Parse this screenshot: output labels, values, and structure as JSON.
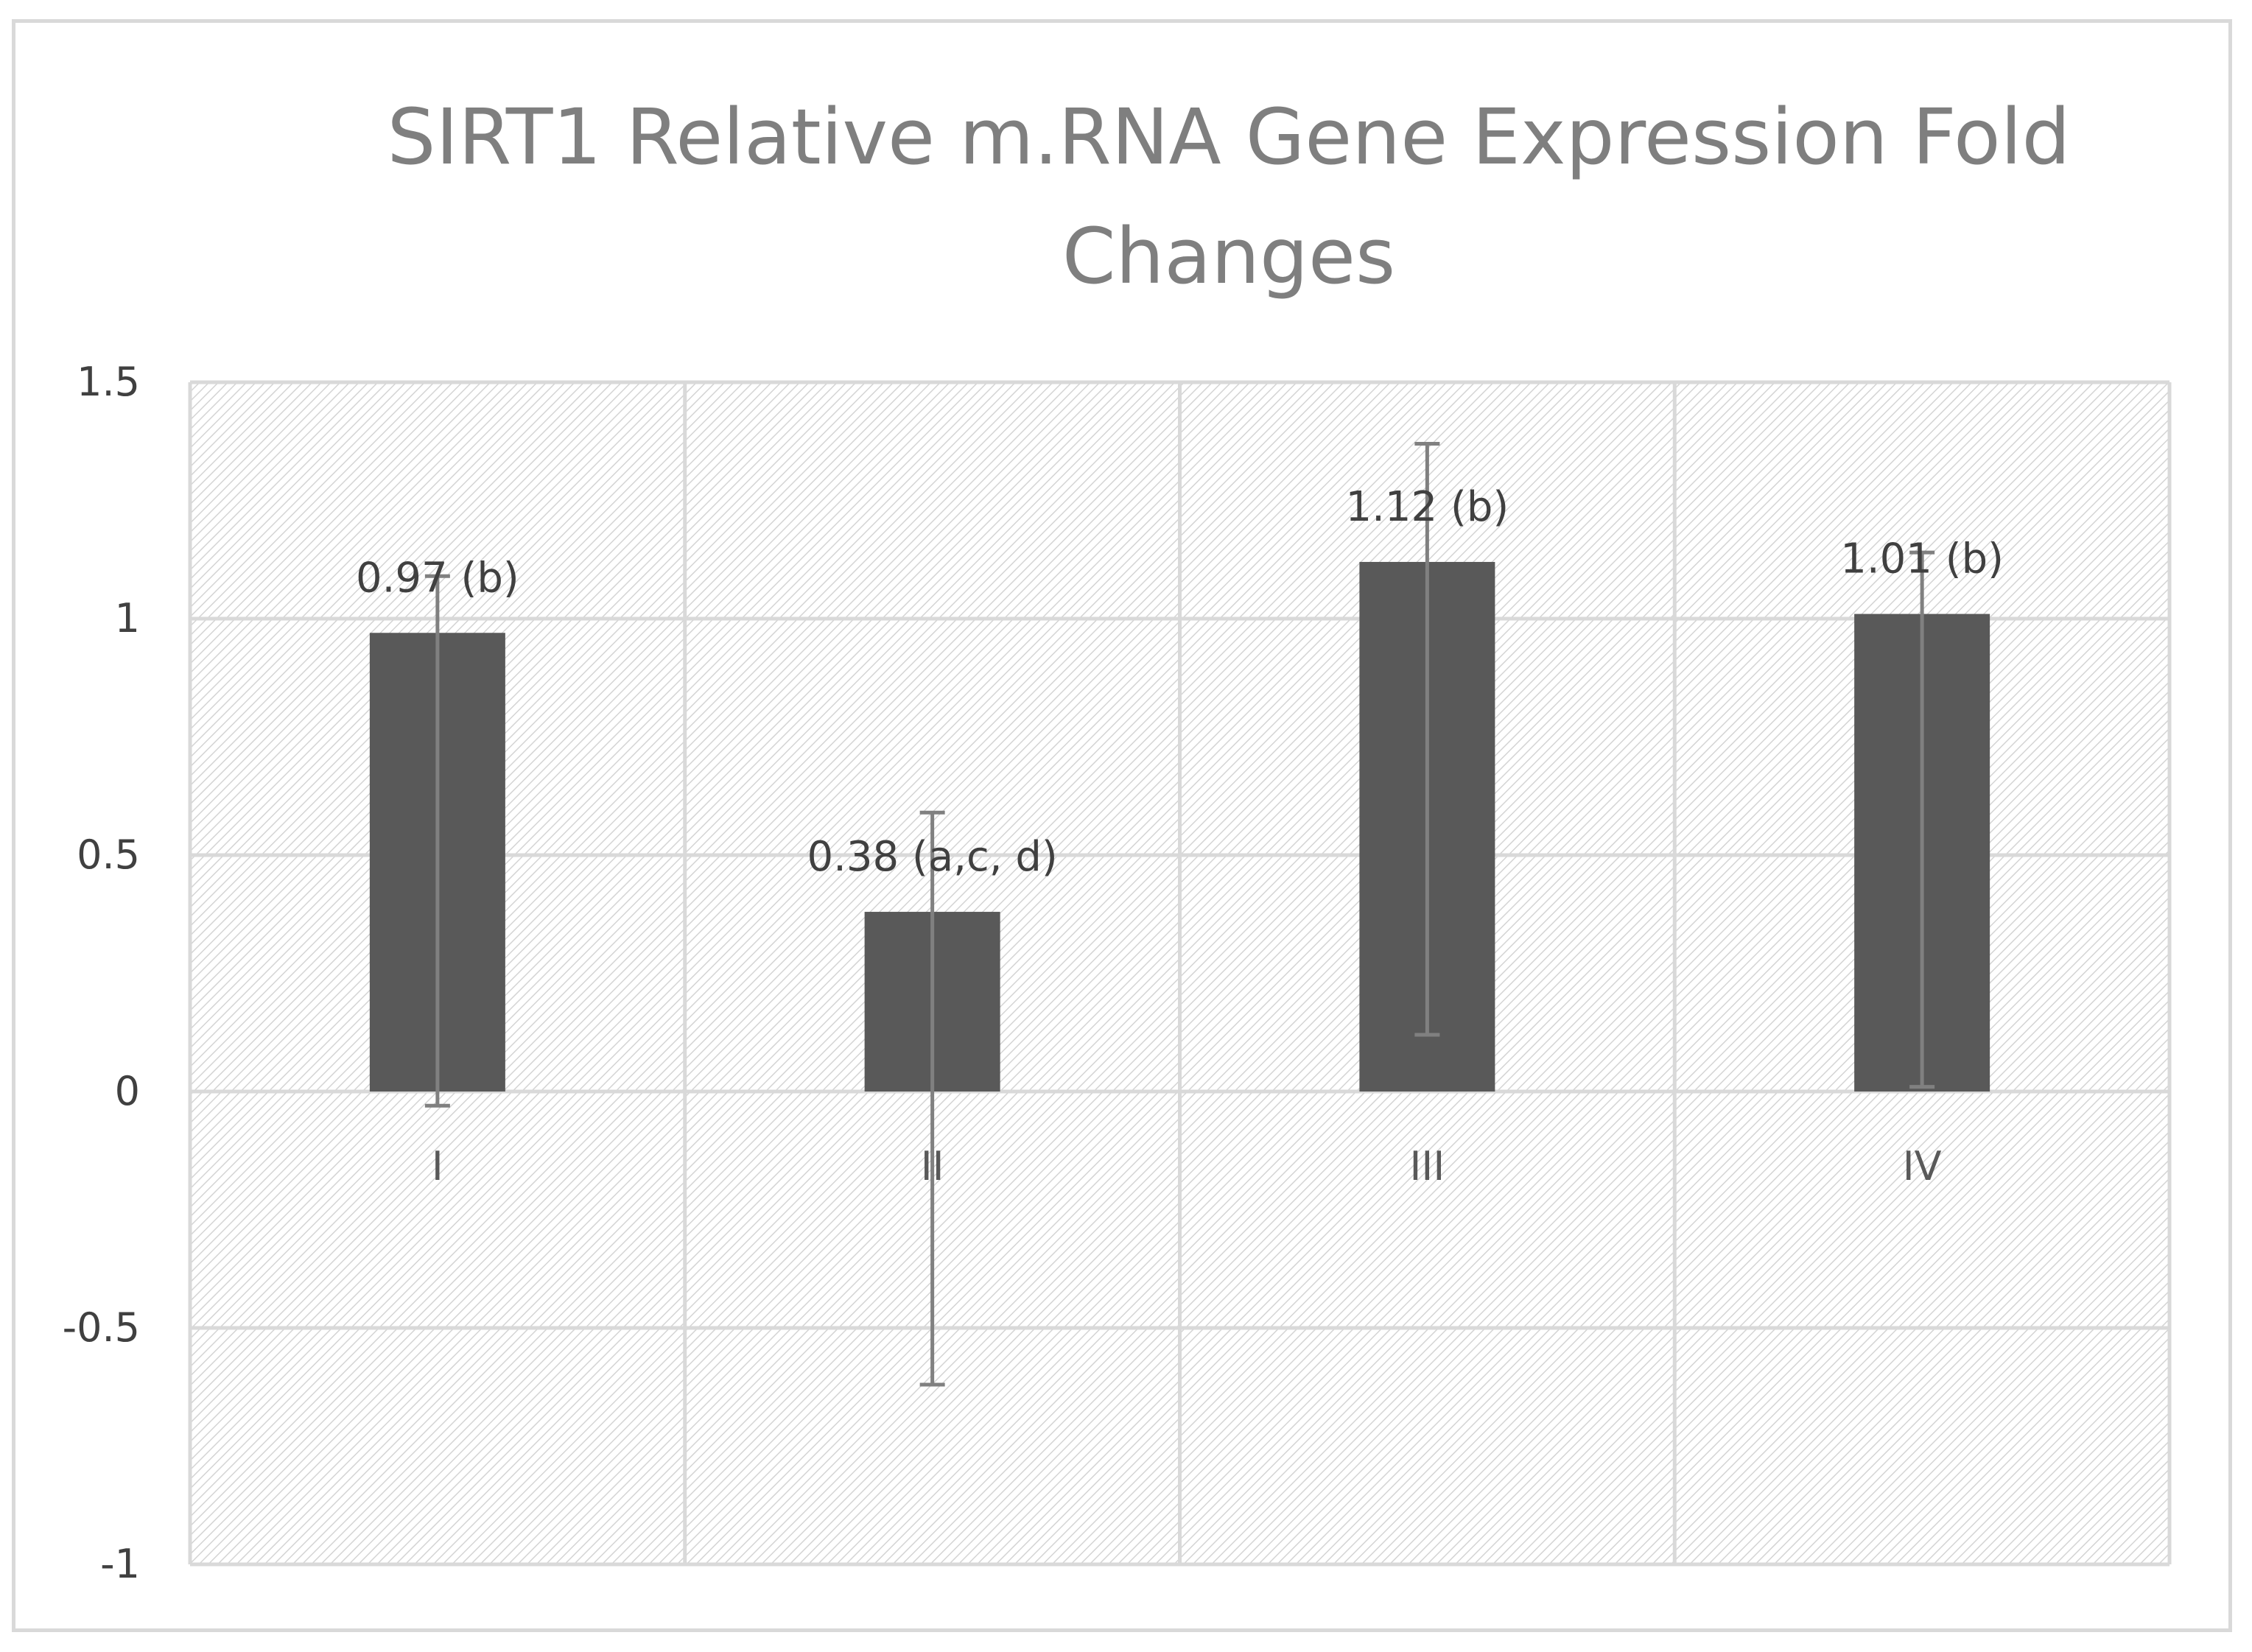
{
  "chart_data": {
    "type": "bar",
    "title_lines": [
      "SIRT1 Relative m.RNA Gene Expression Fold",
      "Changes"
    ],
    "categories": [
      "I",
      "II",
      "III",
      "IV"
    ],
    "values": [
      0.97,
      0.38,
      1.12,
      1.01
    ],
    "error_bars": [
      {
        "low": -0.03,
        "high": 1.09
      },
      {
        "low": -0.62,
        "high": 0.59
      },
      {
        "low": 0.12,
        "high": 1.37
      },
      {
        "low": 0.01,
        "high": 1.14
      }
    ],
    "data_labels": [
      "0.97 (b)",
      "0.38 (a,c, d)",
      "1.12 (b)",
      "1.01 (b)"
    ],
    "ylim": [
      -1,
      1.5
    ],
    "yticks": [
      1.5,
      1,
      0.5,
      0,
      -0.5,
      -1
    ],
    "ytick_labels": [
      "1.5",
      "1",
      "0.5",
      "0",
      "-0.5",
      "-1"
    ],
    "xlabel": "",
    "ylabel": "",
    "grid": true,
    "colors": {
      "bar": "#595959",
      "error_bar": "#808080",
      "grid": "#d9d9d9",
      "hatch": "#d4d4d4"
    }
  }
}
